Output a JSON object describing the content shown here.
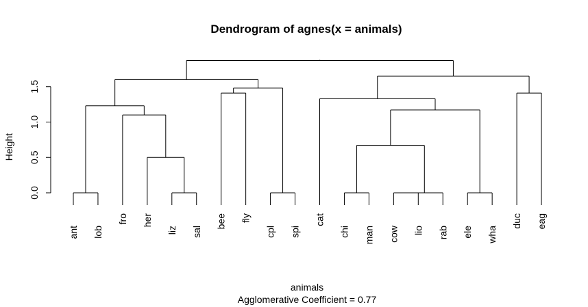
{
  "chart_data": {
    "type": "dendrogram",
    "title": "Dendrogram of  agnes(x = animals)",
    "xlabel": "animals",
    "subtitle": "Agglomerative Coefficient =  0.77",
    "ylabel": "Height",
    "ylim": [
      0,
      1.85
    ],
    "yticks": [
      0.0,
      0.5,
      1.0,
      1.5
    ],
    "ytick_labels": [
      "0.0",
      "0.5",
      "1.0",
      "1.5"
    ],
    "leaves": [
      "ant",
      "lob",
      "fro",
      "her",
      "liz",
      "sal",
      "bee",
      "fly",
      "cpl",
      "spi",
      "cat",
      "chi",
      "man",
      "cow",
      "lio",
      "rab",
      "ele",
      "wha",
      "duc",
      "eag"
    ],
    "merges": [
      {
        "id": "m1",
        "left": "ant",
        "right": "lob",
        "height": 0.0
      },
      {
        "id": "m2",
        "left": "liz",
        "right": "sal",
        "height": 0.0
      },
      {
        "id": "m3",
        "left": "cpl",
        "right": "spi",
        "height": 0.0
      },
      {
        "id": "m4",
        "left": "chi",
        "right": "man",
        "height": 0.0
      },
      {
        "id": "m5",
        "left": "cow",
        "right": "lio",
        "height": 0.0
      },
      {
        "id": "m6",
        "left": "m5",
        "right": "rab",
        "height": 0.0
      },
      {
        "id": "m7",
        "left": "ele",
        "right": "wha",
        "height": 0.0
      },
      {
        "id": "m8",
        "left": "her",
        "right": "m2",
        "height": 0.5
      },
      {
        "id": "m9",
        "left": "m4",
        "right": "m6",
        "height": 0.67
      },
      {
        "id": "m10",
        "left": "fro",
        "right": "m8",
        "height": 1.1
      },
      {
        "id": "m11",
        "left": "m9",
        "right": "m7",
        "height": 1.17
      },
      {
        "id": "m12",
        "left": "m1",
        "right": "m10",
        "height": 1.23
      },
      {
        "id": "m13",
        "left": "cat",
        "right": "m11",
        "height": 1.33
      },
      {
        "id": "m14",
        "left": "bee",
        "right": "fly",
        "height": 1.41
      },
      {
        "id": "m15",
        "left": "duc",
        "right": "eag",
        "height": 1.41
      },
      {
        "id": "m16",
        "left": "m14",
        "right": "m3",
        "height": 1.48
      },
      {
        "id": "m17",
        "left": "m12",
        "right": "m16",
        "height": 1.6
      },
      {
        "id": "m18",
        "left": "m13",
        "right": "m15",
        "height": 1.65
      },
      {
        "id": "m19",
        "left": "m17",
        "right": "m18",
        "height": 1.87
      }
    ]
  }
}
